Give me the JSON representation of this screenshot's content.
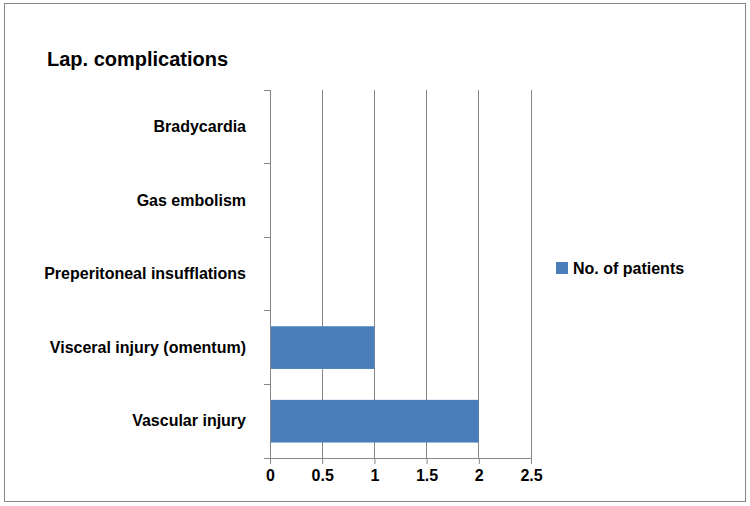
{
  "chart_data": {
    "type": "bar",
    "orientation": "horizontal",
    "title": "Lap. complications",
    "categories": [
      "Bradycardia",
      "Gas embolism",
      "Preperitoneal insufflations",
      "Visceral injury (omentum)",
      "Vascular injury"
    ],
    "series": [
      {
        "name": "No. of patients",
        "color": "#4a7ebb",
        "values": [
          0,
          0,
          0,
          1,
          2
        ]
      }
    ],
    "xlim": [
      0,
      2.5
    ],
    "xticks": [
      0,
      0.5,
      1,
      1.5,
      2,
      2.5
    ],
    "grid": true,
    "legend": "right"
  }
}
